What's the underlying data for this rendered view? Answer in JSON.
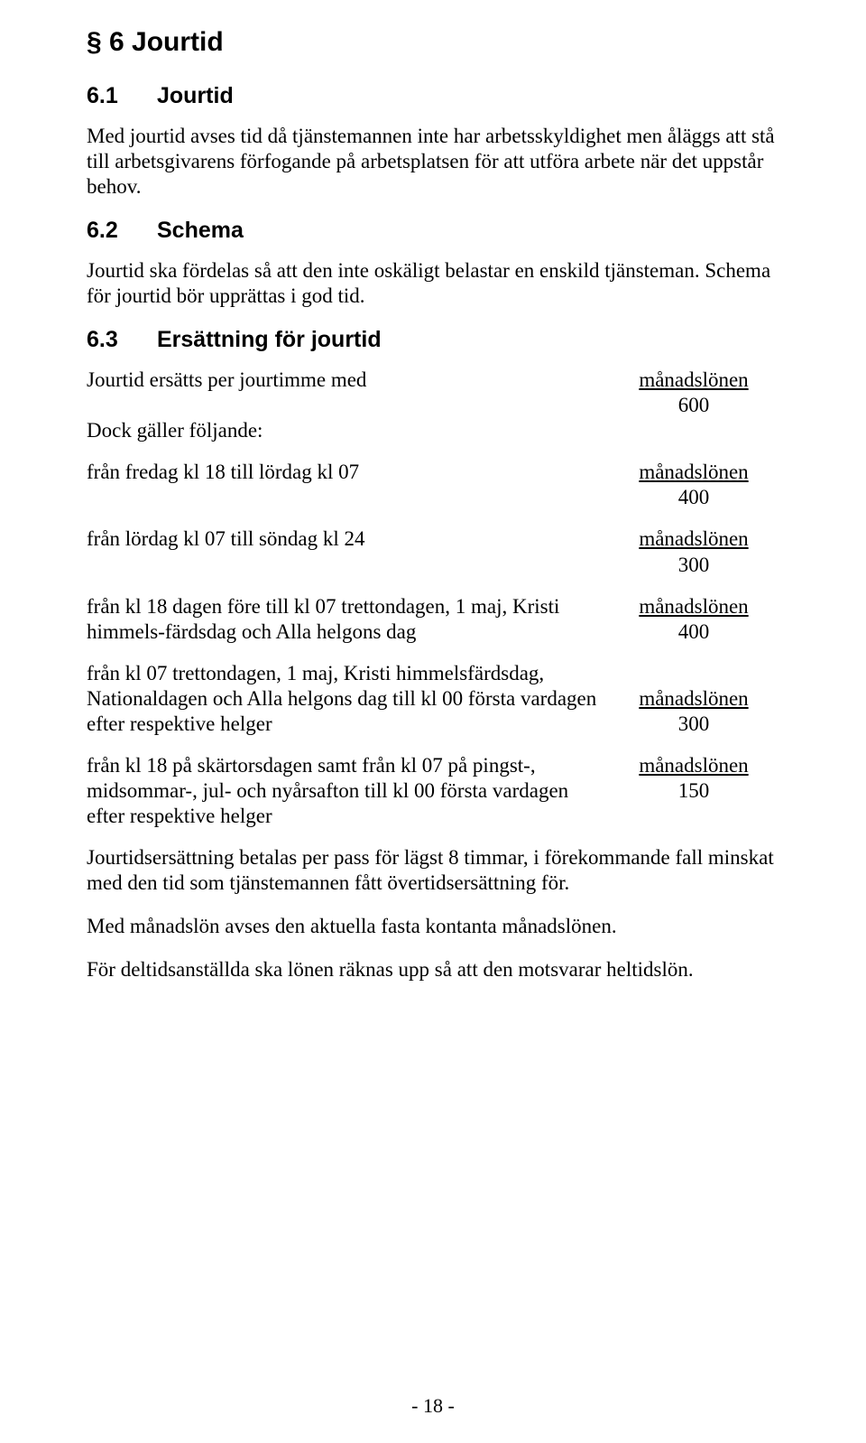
{
  "doc": {
    "h1": "§ 6   Jourtid",
    "s61": {
      "num": "6.1",
      "title": "Jourtid"
    },
    "p61": "Med jourtid avses tid då tjänstemannen inte har arbetsskyldighet men åläggs att stå till arbetsgivarens förfogande på arbetsplatsen för att utföra arbete när det uppstår behov.",
    "s62": {
      "num": "6.2",
      "title": "Schema"
    },
    "p62": "Jourtid ska fördelas så att den inte oskäligt belastar en enskild tjänsteman. Schema för jourtid bör upprättas i god tid.",
    "s63": {
      "num": "6.3",
      "title": "Ersättning för jourtid"
    },
    "rows": [
      {
        "left": "Jourtid ersätts per jourtimme med",
        "label": "månadslönen",
        "denom": "600"
      },
      {
        "left": "Dock gäller följande:",
        "label": "",
        "denom": ""
      },
      {
        "left": "från fredag kl 18 till lördag kl 07",
        "label": "månadslönen",
        "denom": "400"
      },
      {
        "left": "från lördag kl 07 till söndag kl 24",
        "label": "månadslönen",
        "denom": "300"
      },
      {
        "left": "från kl 18 dagen före till kl 07 trettondagen, 1 maj, Kristi himmels-färdsdag och Alla helgons dag",
        "label": "månadslönen",
        "denom": "400"
      },
      {
        "left": "från kl 07 trettondagen, 1 maj, Kristi himmelsfärdsdag, Nationaldagen och Alla helgons dag till kl 00 första vardagen efter respektive helger",
        "label": "månadslönen",
        "denom": "300"
      },
      {
        "left": "från kl 18 på skärtorsdagen samt från kl 07 på pingst-, midsommar-, jul- och nyårsafton till kl 00 första vardagen efter respektive helger",
        "label": "månadslönen",
        "denom": "150"
      }
    ],
    "p_after1": "Jourtidsersättning betalas per pass för lägst 8 timmar, i förekommande fall minskat med den tid som tjänstemannen fått övertidsersättning för.",
    "p_after2": "Med månadslön avses den aktuella fasta kontanta månadslönen.",
    "p_after3": "För deltidsanställda ska lönen räknas upp så att den motsvarar heltidslön.",
    "pagenum": "- 18 -"
  }
}
